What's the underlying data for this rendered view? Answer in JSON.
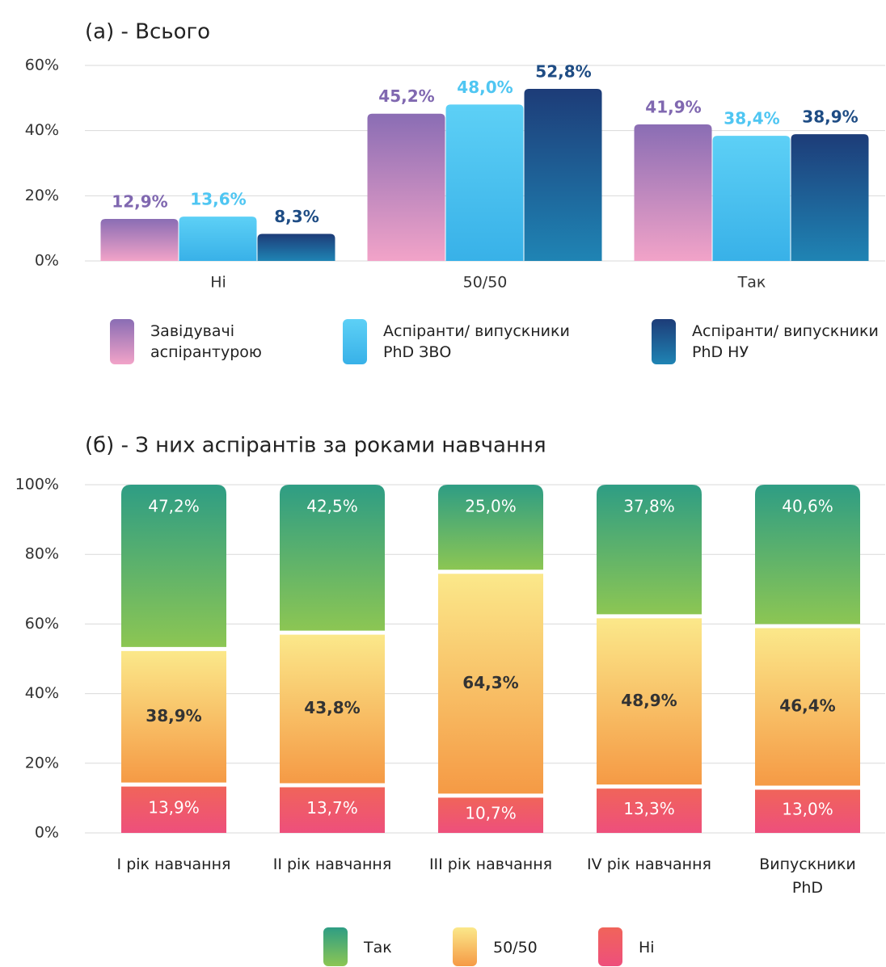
{
  "chart_data": [
    {
      "type": "bar",
      "title": "(а) - Всього",
      "categories": [
        "Ні",
        "50/50",
        "Так"
      ],
      "ylim": [
        0,
        60
      ],
      "yticks": [
        {
          "value": 0,
          "label": "0%"
        },
        {
          "value": 20,
          "label": "20%"
        },
        {
          "value": 40,
          "label": "40%"
        },
        {
          "value": 60,
          "label": "60%"
        }
      ],
      "grid": true,
      "series": [
        {
          "name": "Завідувачі аспірантурою",
          "color": "#8068b0",
          "gradient": [
            "#8a6db4",
            "#f2a3c8"
          ],
          "values": [
            12.9,
            45.2,
            41.9
          ],
          "value_labels": [
            "12,9%",
            "45,2%",
            "41,9%"
          ]
        },
        {
          "name": "Аспіранти/ випускники PhD ЗВО",
          "color": "#4fc6f2",
          "gradient": [
            "#5dd0f6",
            "#38b1e8"
          ],
          "values": [
            13.6,
            48.0,
            38.4
          ],
          "value_labels": [
            "13,6%",
            "48,0%",
            "38,4%"
          ]
        },
        {
          "name": "Аспіранти/ випускники PhD НУ",
          "color": "#1e4c84",
          "gradient": [
            "#1d3c78",
            "#1f84b4"
          ],
          "values": [
            8.3,
            52.8,
            38.9
          ],
          "value_labels": [
            "8,3%",
            "52,8%",
            "38,9%"
          ]
        }
      ]
    },
    {
      "type": "stacked_bar",
      "title": "(б) - З них аспірантів за роками навчання",
      "categories": [
        "I рік навчання",
        "II рік навчання",
        "III рік навчання",
        "IV рік навчання",
        "Випускники PhD"
      ],
      "ylim": [
        0,
        100
      ],
      "yticks": [
        {
          "value": 0,
          "label": "0%"
        },
        {
          "value": 20,
          "label": "20%"
        },
        {
          "value": 40,
          "label": "40%"
        },
        {
          "value": 60,
          "label": "60%"
        },
        {
          "value": 80,
          "label": "80%"
        },
        {
          "value": 100,
          "label": "100%"
        }
      ],
      "grid": true,
      "series": [
        {
          "name": "Так",
          "color": "#ffffff",
          "gradient": [
            "#2e9d84",
            "#8cc653"
          ],
          "values": [
            47.2,
            42.5,
            25.0,
            37.8,
            40.6
          ],
          "value_labels": [
            "47,2%",
            "42,5%",
            "25,0%",
            "37,8%",
            "40,6%"
          ]
        },
        {
          "name": "50/50",
          "color": "#333333",
          "gradient": [
            "#fbe88a",
            "#f59a45"
          ],
          "values": [
            38.9,
            43.8,
            64.3,
            48.9,
            46.4
          ],
          "value_labels": [
            "38,9%",
            "43,8%",
            "64,3%",
            "48,9%",
            "46,4%"
          ]
        },
        {
          "name": "Ні",
          "color": "#ffffff",
          "gradient": [
            "#f0645a",
            "#ee4f7c"
          ],
          "values": [
            13.9,
            13.7,
            10.7,
            13.3,
            13.0
          ],
          "value_labels": [
            "13,9%",
            "13,7%",
            "10,7%",
            "13,3%",
            "13,0%"
          ]
        }
      ]
    }
  ]
}
